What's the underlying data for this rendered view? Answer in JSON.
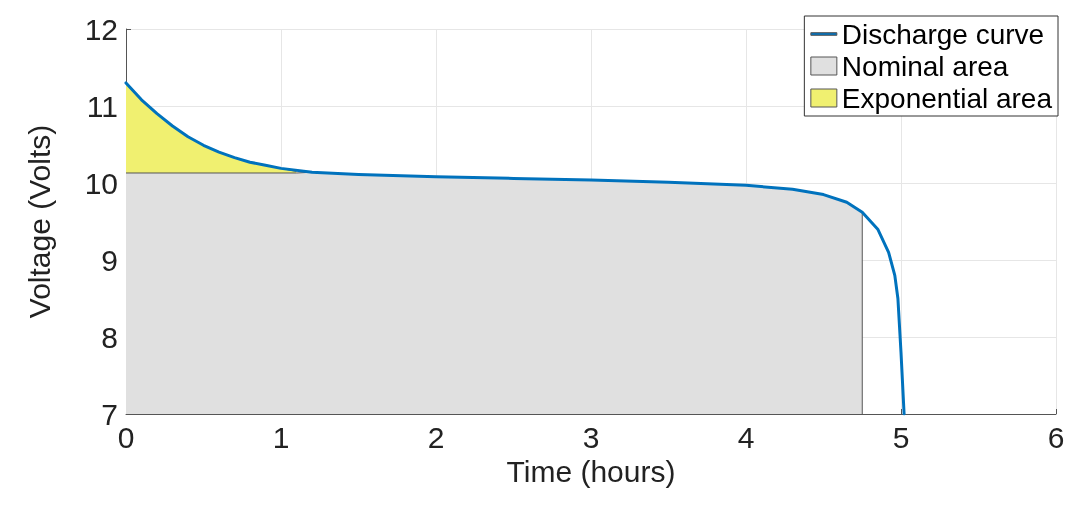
{
  "chart_data": {
    "type": "line",
    "xlabel": "Time (hours)",
    "ylabel": "Voltage (Volts)",
    "xlim": [
      0,
      6
    ],
    "xticks": [
      0,
      1,
      2,
      3,
      4,
      5,
      6
    ],
    "ylim": [
      7,
      12
    ],
    "yticks": [
      7,
      8,
      9,
      10,
      11,
      12
    ],
    "grid": true,
    "legend": "top right",
    "series": [
      {
        "name": "Exponential area",
        "type": "area",
        "color": "#f0f070",
        "x": [
          0,
          0.1,
          0.2,
          0.3,
          0.4,
          0.5,
          0.6,
          0.7,
          0.8,
          0.9,
          1.0,
          1.1
        ],
        "values": [
          11.3,
          11.08,
          10.9,
          10.74,
          10.6,
          10.49,
          10.4,
          10.33,
          10.27,
          10.23,
          10.19,
          10.15
        ]
      },
      {
        "name": "Nominal area",
        "type": "area",
        "color": "#e0e0e0",
        "x": [
          0,
          1.1,
          1.2,
          1.5,
          2,
          2.5,
          3,
          3.5,
          4,
          4.3,
          4.5,
          4.65,
          4.75,
          4.75
        ],
        "values": [
          10.13,
          10.13,
          10.14,
          10.11,
          10.08,
          10.06,
          10.04,
          10.01,
          9.97,
          9.92,
          9.85,
          9.75,
          9.62,
          7
        ]
      },
      {
        "name": "Discharge curve",
        "color": "#0072bd",
        "x": [
          0,
          0.1,
          0.2,
          0.3,
          0.4,
          0.5,
          0.6,
          0.7,
          0.8,
          0.9,
          1.0,
          1.2,
          1.5,
          2,
          2.5,
          3,
          3.5,
          4,
          4.3,
          4.5,
          4.65,
          4.75,
          4.85,
          4.92,
          4.96,
          4.98,
          5.0,
          5.02
        ],
        "values": [
          11.3,
          11.08,
          10.9,
          10.74,
          10.6,
          10.49,
          10.4,
          10.33,
          10.27,
          10.23,
          10.19,
          10.14,
          10.11,
          10.08,
          10.06,
          10.04,
          10.01,
          9.97,
          9.92,
          9.85,
          9.75,
          9.62,
          9.4,
          9.1,
          8.8,
          8.5,
          7.8,
          7.0
        ]
      }
    ]
  }
}
